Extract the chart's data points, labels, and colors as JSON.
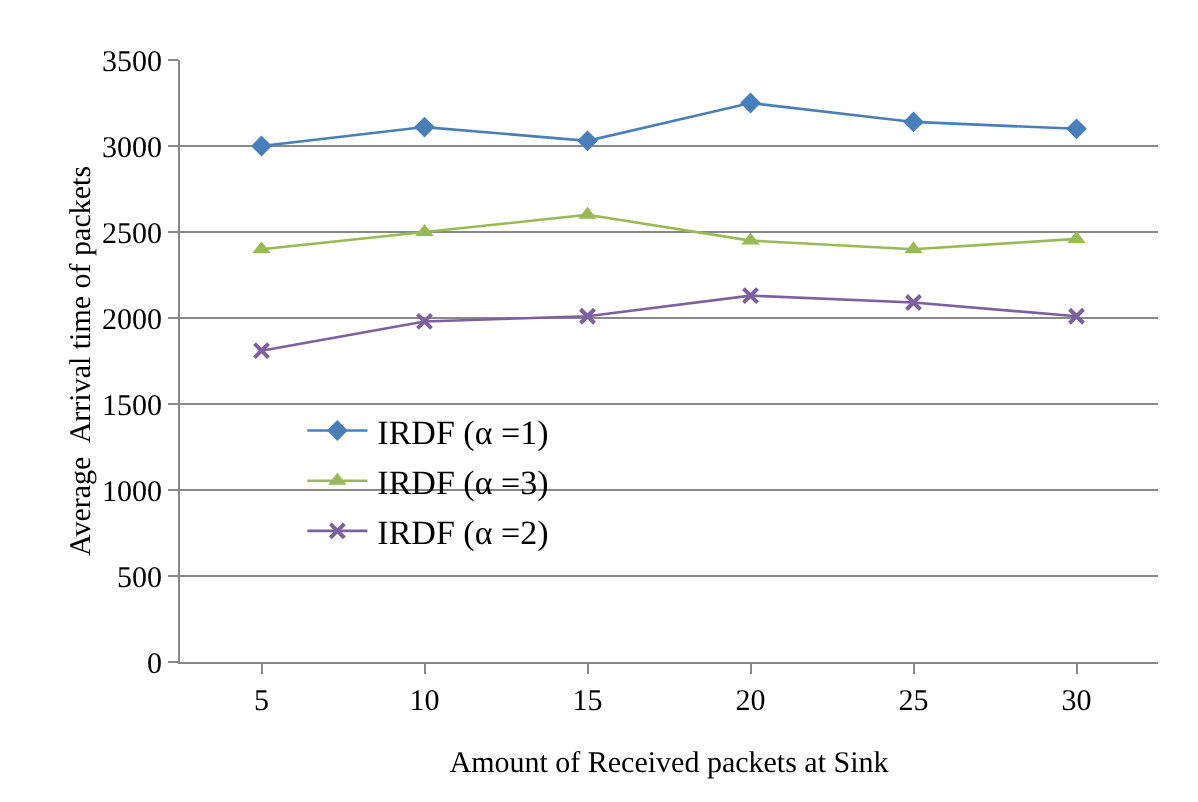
{
  "chart_data": {
    "type": "line",
    "xlabel": "Amount of Received packets at Sink",
    "ylabel": "Average  Arrival time of packets",
    "categories": [
      "5",
      "10",
      "15",
      "20",
      "25",
      "30"
    ],
    "series": [
      {
        "name": "IRDF (α =1)",
        "color": "#4a7ebb",
        "marker": "diamond",
        "values": [
          3000,
          3110,
          3030,
          3250,
          3140,
          3100
        ]
      },
      {
        "name": "IRDF (α =3)",
        "color": "#98b954",
        "marker": "triangle",
        "values": [
          2400,
          2500,
          2600,
          2450,
          2400,
          2460
        ]
      },
      {
        "name": "IRDF (α =2)",
        "color": "#7d60a0",
        "marker": "cross",
        "values": [
          1810,
          1980,
          2010,
          2130,
          2090,
          2010
        ]
      }
    ],
    "ylim": [
      0,
      3500
    ],
    "yticks": [
      0,
      500,
      1000,
      1500,
      2000,
      2500,
      3000,
      3500
    ],
    "grid": "y",
    "legend": "left"
  }
}
